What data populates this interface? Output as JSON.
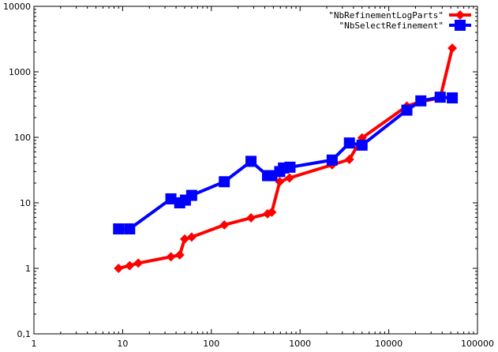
{
  "chart_data": {
    "type": "line",
    "title": "",
    "xlabel": "",
    "ylabel": "",
    "x_scale": "log",
    "y_scale": "log",
    "xlim": [
      1,
      100000
    ],
    "ylim": [
      0.1,
      10000
    ],
    "x_ticks": [
      1,
      10,
      100,
      1000,
      10000,
      100000
    ],
    "x_tick_labels": [
      "1",
      "10",
      "100",
      "1000",
      "10000",
      "100000"
    ],
    "y_ticks": [
      0.1,
      1,
      10,
      100,
      1000,
      10000
    ],
    "y_tick_labels": [
      "0,1",
      "1",
      "10",
      "100",
      "1000",
      "10000"
    ],
    "grid": false,
    "legend_position": "top-right",
    "series": [
      {
        "name": "\"NbRefinementLogParts\"",
        "color": "#ff0000",
        "marker": "diamond",
        "points": [
          [
            9,
            1.0
          ],
          [
            12,
            1.1
          ],
          [
            15,
            1.2
          ],
          [
            35,
            1.5
          ],
          [
            44,
            1.6
          ],
          [
            50,
            2.8
          ],
          [
            60,
            3.0
          ],
          [
            140,
            4.6
          ],
          [
            280,
            5.9
          ],
          [
            430,
            6.8
          ],
          [
            480,
            7.2
          ],
          [
            590,
            21
          ],
          [
            760,
            24
          ],
          [
            2300,
            38
          ],
          [
            3600,
            46
          ],
          [
            5000,
            98
          ],
          [
            16000,
            300
          ],
          [
            23000,
            350
          ],
          [
            38000,
            400
          ],
          [
            52000,
            2300
          ]
        ]
      },
      {
        "name": "\"NbSelectRefinement\"",
        "color": "#0000ff",
        "marker": "square",
        "points": [
          [
            9,
            4.0
          ],
          [
            12,
            4.0
          ],
          [
            35,
            11.5
          ],
          [
            44,
            10
          ],
          [
            51,
            11
          ],
          [
            60,
            13
          ],
          [
            140,
            21
          ],
          [
            280,
            43
          ],
          [
            430,
            26
          ],
          [
            480,
            26
          ],
          [
            590,
            30
          ],
          [
            650,
            34
          ],
          [
            770,
            35
          ],
          [
            2300,
            45
          ],
          [
            3600,
            82
          ],
          [
            5000,
            76
          ],
          [
            16000,
            260
          ],
          [
            23000,
            360
          ],
          [
            38000,
            410
          ],
          [
            52000,
            400
          ]
        ]
      }
    ]
  }
}
